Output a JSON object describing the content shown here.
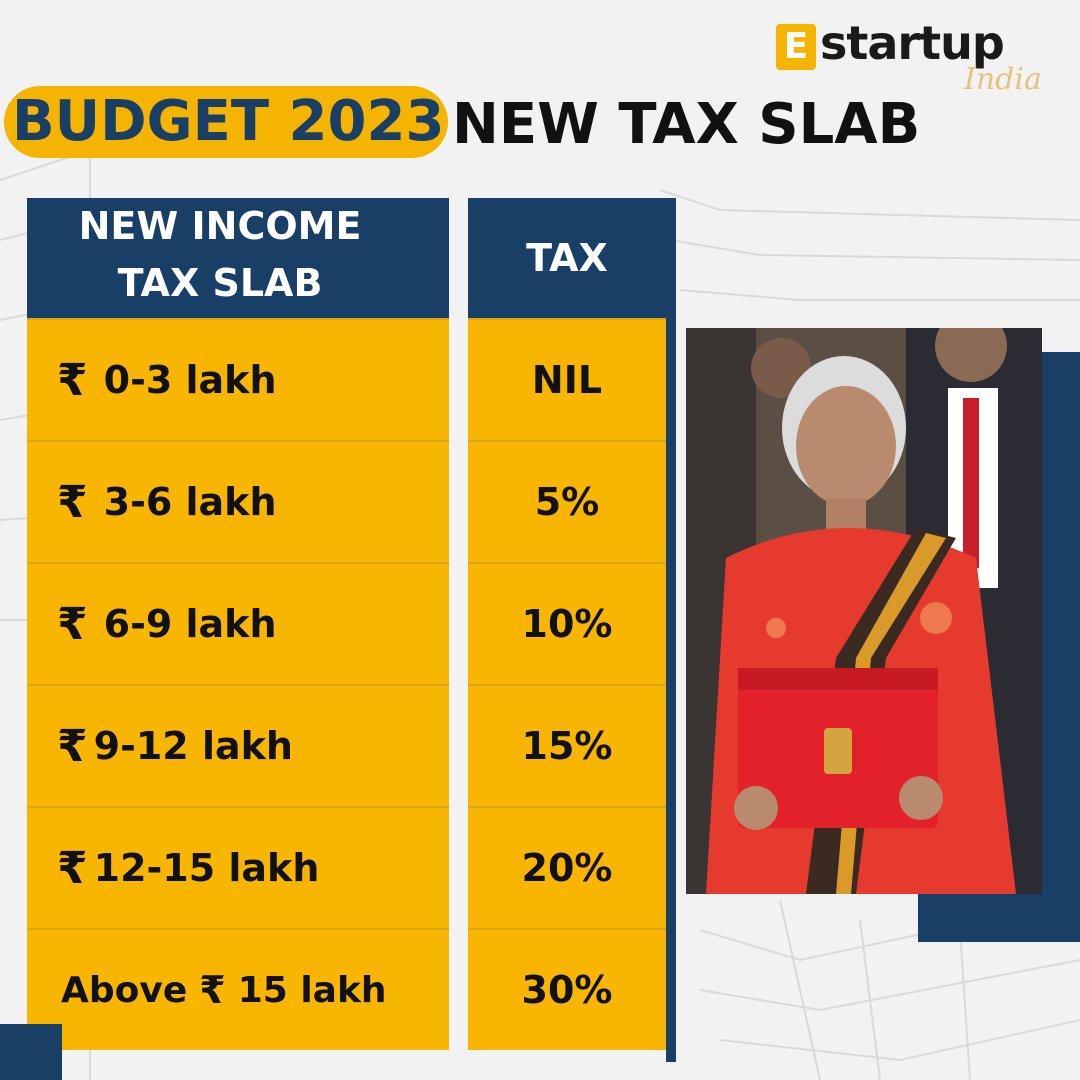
{
  "logo": {
    "mark": "E",
    "brand": "startup",
    "sub": "India"
  },
  "title": {
    "highlight": "BUDGET 2023",
    "rest": "NEW TAX SLAB"
  },
  "table": {
    "header_income_line1": "NEW INCOME",
    "header_income_line2": "TAX SLAB",
    "header_tax": "TAX",
    "rows": [
      {
        "slab": "0-3 lakh",
        "tax": "NIL"
      },
      {
        "slab": "3-6 lakh",
        "tax": "5%"
      },
      {
        "slab": "6-9 lakh",
        "tax": "10%"
      },
      {
        "slab": "9-12 lakh",
        "tax": "15%"
      },
      {
        "slab": "12-15 lakh",
        "tax": "20%"
      },
      {
        "prefix": "Above",
        "slab": "15 lakh",
        "tax": "30%"
      }
    ],
    "currency_symbol": "₹"
  },
  "colors": {
    "navy": "#1a3f67",
    "yellow": "#f9b600",
    "background": "#f2f2f2"
  },
  "photo": {
    "subject": "photo of woman in red saree holding red budget folder"
  }
}
